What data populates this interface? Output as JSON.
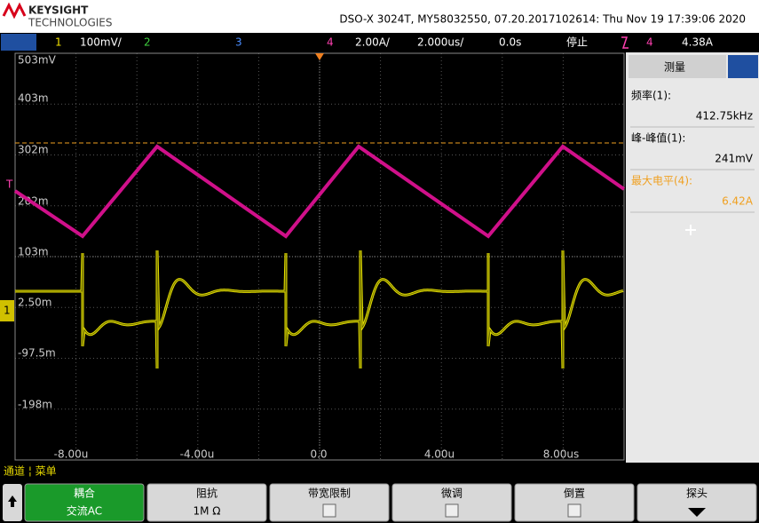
{
  "header": {
    "brand": "KEYSIGHT",
    "sub": "TECHNOLOGIES",
    "info": "DSO-X 3024T, MY58032550, 07.20.2017102614: Thu Nov 19 17:39:06 2020"
  },
  "status": {
    "ch1": "1",
    "ch1_scale": "100mV/",
    "ch2": "2",
    "ch3": "3",
    "ch4": "4",
    "ch4_scale": "2.00A/",
    "timebase": "2.000us/",
    "delay": "0.0s",
    "run_state": "停止",
    "trig_source": "4",
    "trig_level": "4.38A"
  },
  "screen": {
    "y_labels": [
      "503mV",
      "403m",
      "302m",
      "202m",
      "103m",
      "2.50m",
      "-97.5m",
      "-198m"
    ],
    "x_labels": [
      "-8.00u",
      "-4.00u",
      "0.0",
      "4.00u",
      "8.00us"
    ],
    "trigger_marker": "T",
    "ch1_marker": "1"
  },
  "measure": {
    "title": "测量",
    "items": [
      {
        "label": "频率(1):",
        "value": "412.75kHz"
      },
      {
        "label": "峰-峰值(1):",
        "value": "241mV"
      },
      {
        "label": "最大电平(4):",
        "value": "6.42A"
      }
    ]
  },
  "menu": {
    "title": "通道 ¦ 菜单"
  },
  "softkeys": [
    {
      "label": "耦合",
      "value": "交流AC"
    },
    {
      "label": "阻抗",
      "value": "1M Ω"
    },
    {
      "label": "带宽限制"
    },
    {
      "label": "微调"
    },
    {
      "label": "倒置"
    },
    {
      "label": "探头"
    }
  ]
}
